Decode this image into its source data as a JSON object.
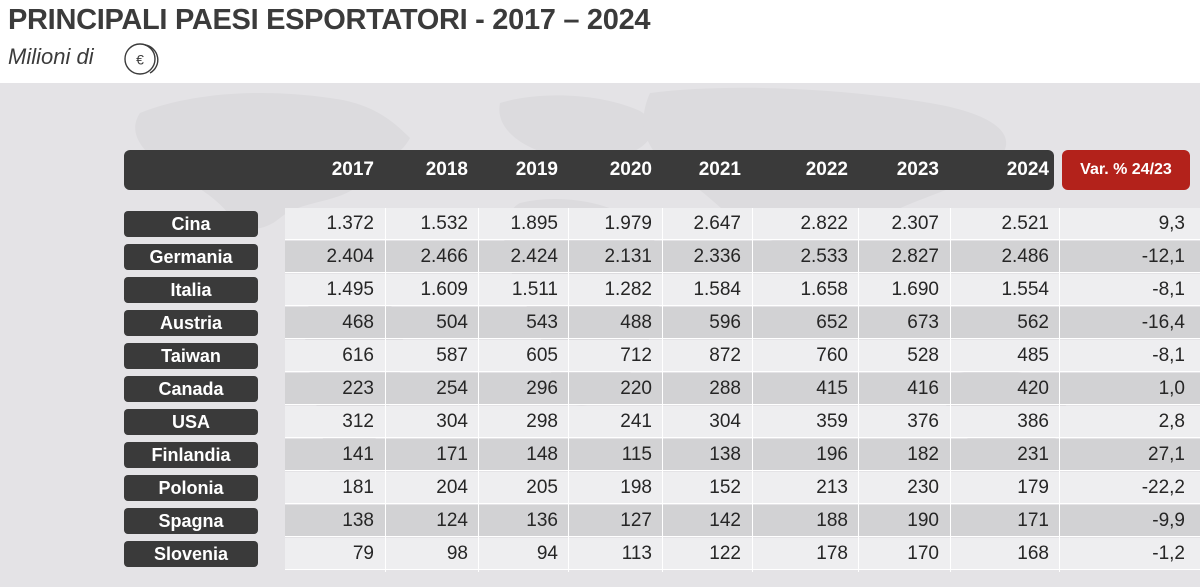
{
  "title": "PRINCIPALI PAESI ESPORTATORI - 2017 – 2024",
  "subtitle": "Milioni di",
  "currency_symbol": "€",
  "icons": {
    "currency": "euro-coin-icon",
    "background": "world-map"
  },
  "colors": {
    "header": "#3a3a3a",
    "accent": "#b3221b",
    "panel": "#e4e3e6",
    "row_light": "#eeeef0",
    "row_dark": "#d2d2d4"
  },
  "chart_data": {
    "type": "table",
    "columns": [
      "2017",
      "2018",
      "2019",
      "2020",
      "2021",
      "2022",
      "2023",
      "2024"
    ],
    "change_header": "Var. % 24/23",
    "rows": [
      {
        "country": "Cina",
        "values": [
          "1.372",
          "1.532",
          "1.895",
          "1.979",
          "2.647",
          "2.822",
          "2.307",
          "2.521"
        ],
        "change": "9,3"
      },
      {
        "country": "Germania",
        "values": [
          "2.404",
          "2.466",
          "2.424",
          "2.131",
          "2.336",
          "2.533",
          "2.827",
          "2.486"
        ],
        "change": "-12,1"
      },
      {
        "country": "Italia",
        "values": [
          "1.495",
          "1.609",
          "1.511",
          "1.282",
          "1.584",
          "1.658",
          "1.690",
          "1.554"
        ],
        "change": "-8,1"
      },
      {
        "country": "Austria",
        "values": [
          "468",
          "504",
          "543",
          "488",
          "596",
          "652",
          "673",
          "562"
        ],
        "change": "-16,4"
      },
      {
        "country": "Taiwan",
        "values": [
          "616",
          "587",
          "605",
          "712",
          "872",
          "760",
          "528",
          "485"
        ],
        "change": "-8,1"
      },
      {
        "country": "Canada",
        "values": [
          "223",
          "254",
          "296",
          "220",
          "288",
          "415",
          "416",
          "420"
        ],
        "change": "1,0"
      },
      {
        "country": "USA",
        "values": [
          "312",
          "304",
          "298",
          "241",
          "304",
          "359",
          "376",
          "386"
        ],
        "change": "2,8"
      },
      {
        "country": "Finlandia",
        "values": [
          "141",
          "171",
          "148",
          "115",
          "138",
          "196",
          "182",
          "231"
        ],
        "change": "27,1"
      },
      {
        "country": "Polonia",
        "values": [
          "181",
          "204",
          "205",
          "198",
          "152",
          "213",
          "230",
          "179"
        ],
        "change": "-22,2"
      },
      {
        "country": "Spagna",
        "values": [
          "138",
          "124",
          "136",
          "127",
          "142",
          "188",
          "190",
          "171"
        ],
        "change": "-9,9"
      },
      {
        "country": "Slovenia",
        "values": [
          "79",
          "98",
          "94",
          "113",
          "122",
          "178",
          "170",
          "168"
        ],
        "change": "-1,2"
      }
    ]
  }
}
